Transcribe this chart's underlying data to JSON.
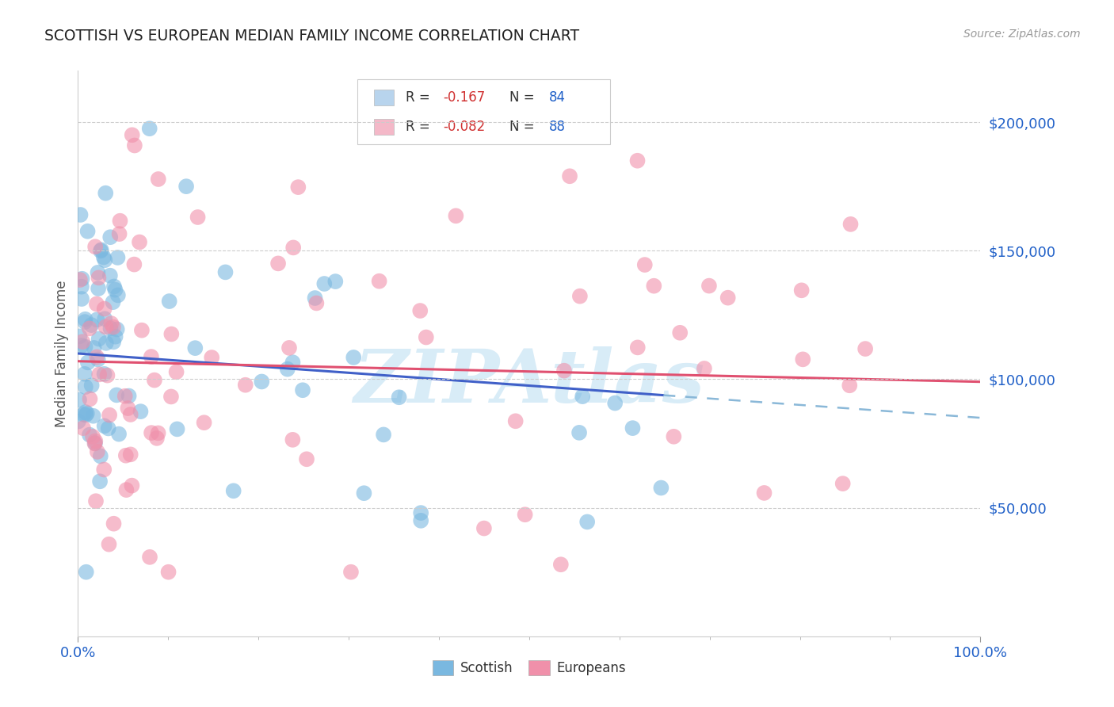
{
  "title": "SCOTTISH VS EUROPEAN MEDIAN FAMILY INCOME CORRELATION CHART",
  "source_text": "Source: ZipAtlas.com",
  "ylabel": "Median Family Income",
  "xlim": [
    0,
    1
  ],
  "ylim": [
    0,
    220000
  ],
  "yticks": [
    50000,
    100000,
    150000,
    200000
  ],
  "ytick_labels": [
    "$50,000",
    "$100,000",
    "$150,000",
    "$200,000"
  ],
  "legend_entries": [
    {
      "label_r": "R = ",
      "r_val": "-0.167",
      "label_n": "N = ",
      "n_val": "84",
      "color": "#b8d4ed"
    },
    {
      "label_r": "R = ",
      "r_val": "-0.082",
      "label_n": "N = ",
      "n_val": "88",
      "color": "#f4b8c8"
    }
  ],
  "scottish_color": "#7ab8e0",
  "european_color": "#f090aa",
  "scottish_line_color": "#4060c8",
  "european_line_color": "#e05070",
  "dashed_line_color": "#8ab8d8",
  "watermark_text": "ZIPAtlas",
  "watermark_color": "#c8e4f4",
  "title_color": "#222222",
  "axis_label_color": "#555555",
  "r_value_color": "#d03030",
  "n_value_color": "#2060c8",
  "ytick_color": "#2060c8",
  "xtick_color": "#2060c8",
  "background_color": "#ffffff",
  "grid_color": "#cccccc",
  "source_color": "#999999",
  "bottom_legend_labels": [
    "Scottish",
    "Europeans"
  ]
}
